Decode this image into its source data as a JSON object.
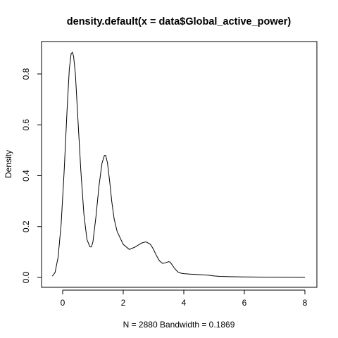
{
  "chart_data": {
    "type": "line",
    "title": "density.default(x = data$Global_active_power)",
    "xlabel": "N = 2880   Bandwidth = 0.1869",
    "ylabel": "Density",
    "xlim": [
      -0.4,
      8.0
    ],
    "ylim": [
      0.0,
      0.89
    ],
    "xticks": [
      0,
      2,
      4,
      6,
      8
    ],
    "yticks": [
      0.0,
      0.2,
      0.4,
      0.6,
      0.8
    ],
    "xtick_labels": [
      "0",
      "2",
      "4",
      "6",
      "8"
    ],
    "ytick_labels": [
      "0.0",
      "0.2",
      "0.4",
      "0.6",
      "0.8"
    ],
    "grid": false,
    "line_color": "#000000",
    "series": [
      {
        "x": [
          -0.34,
          -0.25,
          -0.15,
          -0.05,
          0.05,
          0.15,
          0.22,
          0.28,
          0.32,
          0.36,
          0.42,
          0.5,
          0.6,
          0.7,
          0.8,
          0.9,
          0.95,
          1.0,
          1.1,
          1.2,
          1.3,
          1.38,
          1.42,
          1.48,
          1.55,
          1.62,
          1.7,
          1.8,
          2.0,
          2.2,
          2.4,
          2.6,
          2.75,
          2.9,
          3.0,
          3.1,
          3.2,
          3.3,
          3.4,
          3.5,
          3.55,
          3.6,
          3.7,
          3.8,
          3.9,
          4.0,
          4.2,
          4.5,
          4.8,
          5.0,
          5.2,
          5.5,
          6.0,
          7.0,
          8.0
        ],
        "y": [
          0.005,
          0.02,
          0.08,
          0.21,
          0.42,
          0.67,
          0.82,
          0.88,
          0.885,
          0.87,
          0.8,
          0.63,
          0.42,
          0.25,
          0.15,
          0.12,
          0.12,
          0.14,
          0.24,
          0.36,
          0.45,
          0.48,
          0.48,
          0.45,
          0.38,
          0.3,
          0.23,
          0.18,
          0.13,
          0.11,
          0.12,
          0.135,
          0.14,
          0.13,
          0.11,
          0.085,
          0.065,
          0.055,
          0.058,
          0.062,
          0.06,
          0.052,
          0.035,
          0.022,
          0.017,
          0.015,
          0.013,
          0.011,
          0.009,
          0.006,
          0.004,
          0.003,
          0.002,
          0.001,
          0.0005
        ]
      }
    ]
  }
}
